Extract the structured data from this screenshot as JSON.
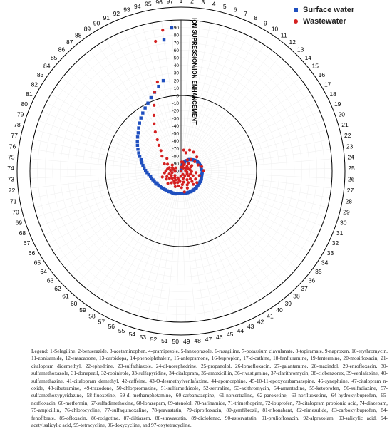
{
  "chart_data": {
    "type": "scatter",
    "coordinate_system": "polar",
    "ylabel": "ION SUPRESSION/ION ENHANCEMENT",
    "ylim": [
      -100,
      100
    ],
    "r_ticks": [
      90,
      80,
      70,
      60,
      50,
      40,
      30,
      20,
      10,
      0,
      -10,
      -20,
      -30,
      -40,
      -50,
      -60,
      -70,
      -80,
      -90,
      -100
    ],
    "categories": [
      1,
      2,
      3,
      4,
      5,
      6,
      7,
      8,
      9,
      10,
      11,
      12,
      13,
      14,
      15,
      16,
      17,
      18,
      19,
      20,
      21,
      22,
      23,
      24,
      25,
      26,
      27,
      28,
      29,
      30,
      31,
      32,
      33,
      34,
      35,
      36,
      37,
      38,
      39,
      40,
      41,
      42,
      43,
      44,
      45,
      46,
      47,
      48,
      49,
      50,
      51,
      52,
      53,
      54,
      55,
      56,
      57,
      58,
      59,
      60,
      61,
      62,
      63,
      64,
      65,
      66,
      67,
      68,
      69,
      70,
      71,
      72,
      73,
      74,
      75,
      76,
      77,
      78,
      79,
      80,
      81,
      82,
      83,
      84,
      85,
      86,
      87,
      88,
      89,
      90,
      91,
      92,
      93,
      94,
      95,
      96,
      97
    ],
    "legend": {
      "position": "top-right",
      "entries": [
        "Surface water",
        "Wastewater"
      ]
    },
    "series": [
      {
        "name": "Surface water",
        "marker": "square",
        "color": "#1f4fbf",
        "values": [
          -100,
          -98,
          -95,
          -93,
          -91,
          -89,
          -87,
          -85,
          -84,
          -82,
          -81,
          -80,
          -79,
          -78,
          -77,
          -76,
          -75,
          -75,
          -74,
          -74,
          -73,
          -73,
          -73,
          -73,
          -72,
          -72,
          -72,
          -72,
          -72,
          -72,
          -71,
          -71,
          -71,
          -71,
          -71,
          -71,
          -71,
          -70,
          -70,
          -70,
          -70,
          -70,
          -70,
          -70,
          -70,
          -70,
          -70,
          -70,
          -70,
          -70,
          -70,
          -70,
          -69,
          -69,
          -69,
          -69,
          -69,
          -68,
          -68,
          -68,
          -67,
          -67,
          -66,
          -66,
          -65,
          -64,
          -63,
          -62,
          -61,
          -60,
          -59,
          -57,
          -55,
          -53,
          -51,
          -49,
          -47,
          -45,
          -42,
          -39,
          -36,
          -33,
          -30,
          -27,
          -24,
          -20,
          -16,
          -12,
          -8,
          -4,
          0,
          5,
          10,
          16,
          22,
          75,
          90
        ]
      },
      {
        "name": "Wastewater",
        "marker": "circle",
        "color": "#d42020",
        "values": [
          -95,
          -88,
          -72,
          -88,
          -75,
          -92,
          -70,
          -90,
          -83,
          -70,
          -95,
          -80,
          -86,
          -72,
          -90,
          -78,
          -93,
          -84,
          -86,
          -76,
          -90,
          -72,
          -88,
          -94,
          -70,
          -86,
          -80,
          -92,
          -75,
          -87,
          -83,
          -91,
          -78,
          -88,
          -74,
          -84,
          -80,
          -76,
          -92,
          -86,
          -82,
          -95,
          -80,
          -76,
          -90,
          -85,
          -72,
          -82,
          -78,
          -93,
          -86,
          -80,
          -88,
          -84,
          -78,
          -90,
          -82,
          -86,
          -84,
          -80,
          -88,
          -76,
          -85,
          -90,
          -82,
          -78,
          -86,
          -80,
          -74,
          -84,
          -88,
          -78,
          -92,
          -80,
          -86,
          -82,
          -90,
          -84,
          -88,
          -76,
          -80,
          -92,
          -86,
          -68,
          -75,
          -62,
          -55,
          -48,
          -38,
          -28,
          -18,
          -6,
          10,
          22,
          75,
          88,
          -100
        ]
      }
    ]
  },
  "caption": {
    "text": "Legend: 1-Selegiline, 2-benserazide, 3-acetaminophen, 4-pramipesole, 5-lanzoprazole, 6-rasagiline, 7-potassium clavulanate, 8-topiramate, 9-naproxen, 10-erythromycin, 11-zonisamide, 12-entacapone, 13-carbidopa, 14-phenolphthalein, 15-anfepramone, 16-bupropion, 17-d-cathine, 18-fenfluramine, 19-fentermine, 20-mosifloxacin, 21-citalopram didemethyl, 22-ephedrine, 23-sulfathiazole, 24-dl-norephedrine, 25-propanolol, 26-lomefloxacin, 27-galantamine, 28-mazindol, 29-enrofloxacin, 30-sulfamethoxazole, 31-donepezil, 32-ropinirole, 33-sulfapyridine, 34-citalopram, 35-amoxicillin, 36-rivastigmine, 37-clarithromycin, 38-clobenzorex, 39-venlafaxine, 40-sulfamethazine, 41-citalopram demethyl, 42-caffeine, 43-O-desmethylvenlafaxine, 44-apomorphine, 45-10-11-epoxycarbamazepine, 46-synephrine, 47-citalopram n-oxide, 48-sibutramine, 49-trazodone, 50-chlorpromazine, 51-sulfamethizole, 52-sertraline, 53-azithromycin, 54-amantadine, 55-ketoprofen, 56-sulfadiazine, 57-sulfamethoxypyridazine, 58-fluoxetine, 59-dl-methamphetamine, 60-carbamazepine, 61-norsertraline, 62-paroxetine, 63-norfluoxetine, 64-hydroxyibuprofen, 65-norfloxacin, 66-metformin, 67-sulfadimethoxine, 68-lorazepam, 69-atenolol, 70-nafinamide, 71-trimethoprim, 72-ibuprofen, 73-citalopram propionic acid, 74-diazepam, 75-ampicillin, 76-chlorocycline, 77-sulfaquinoxaline, 78-pravastatin, 79-ciprofloxacin, 80-gemfibrozil, 81-ribonabant, 82-nimesulide, 83-carboxyibuprofen, 84-fenofibrate, 85-ofloxacin, 86-rotigotine, 87-diltiazem, 88-simvastatin, 89-diclofenac, 90-astorvatatin, 91-pruliofloxacin, 92-alprazolam, 93-salicylic acid, 94-acetylsalicylic acid, 95-tetracycline, 96-doxycycline, and 97-oxytetracycline."
  }
}
